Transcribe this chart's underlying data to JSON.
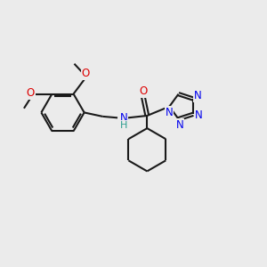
{
  "bg_color": "#ebebeb",
  "bond_color": "#1a1a1a",
  "bond_width": 1.5,
  "atom_colors": {
    "N": "#0000ee",
    "O": "#dd0000",
    "H": "#2a9d8f",
    "C": "#1a1a1a"
  },
  "fs": 8.5,
  "fs_small": 7.5,
  "xlim": [
    0,
    10
  ],
  "ylim": [
    0,
    10
  ]
}
